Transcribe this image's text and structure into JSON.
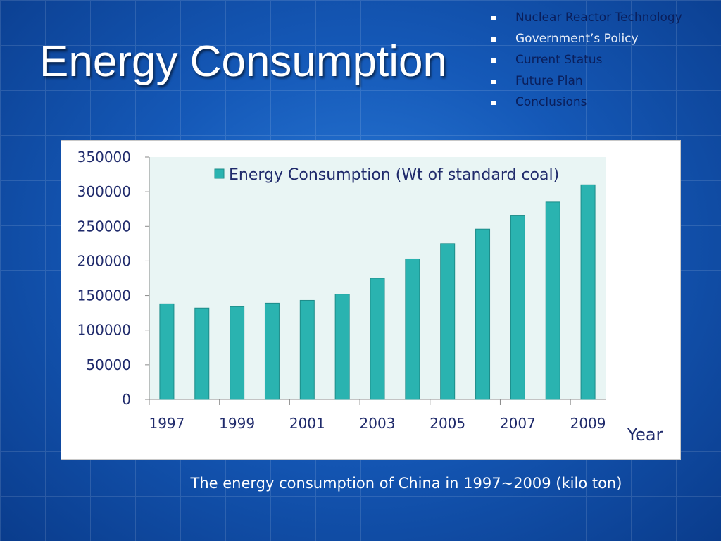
{
  "slide": {
    "title": "Energy Consumption",
    "caption": "The energy consumption of China in 1997~2009 (kilo ton)"
  },
  "nav": {
    "items": [
      {
        "label": "Nuclear Reactor Technology",
        "style": "dark"
      },
      {
        "label": "Government’s Policy",
        "style": "light"
      },
      {
        "label": "Current Status",
        "style": "dark"
      },
      {
        "label": "Future Plan",
        "style": "dark"
      },
      {
        "label": "Conclusions",
        "style": "dark"
      }
    ]
  },
  "colors": {
    "bar_fill": "#2ab3b0",
    "bar_stroke": "#1d8c89",
    "plot_bg": "#e9f5f4",
    "axis": "#8a8a8a",
    "dark_text": "#0a1f5c",
    "label_text": "#1f2a6b"
  },
  "chart_data": {
    "type": "bar",
    "categories": [
      "1997",
      "1998",
      "1999",
      "2000",
      "2001",
      "2002",
      "2003",
      "2004",
      "2005",
      "2006",
      "2007",
      "2008",
      "2009"
    ],
    "x_tick_labels": [
      "1997",
      "",
      "1999",
      "",
      "2001",
      "",
      "2003",
      "",
      "2005",
      "",
      "2007",
      "",
      "2009"
    ],
    "series": [
      {
        "name": "Energy Consumption (Wt of standard coal)",
        "values": [
          138000,
          132000,
          134000,
          139000,
          143000,
          152000,
          175000,
          203000,
          225000,
          246000,
          266000,
          285000,
          310000
        ]
      }
    ],
    "xlabel": "Year",
    "ylabel": "",
    "ylim": [
      0,
      350000
    ],
    "y_ticks": [
      "0",
      "50000",
      "100000",
      "150000",
      "200000",
      "250000",
      "300000",
      "350000"
    ],
    "legend": "top",
    "grid": false
  }
}
